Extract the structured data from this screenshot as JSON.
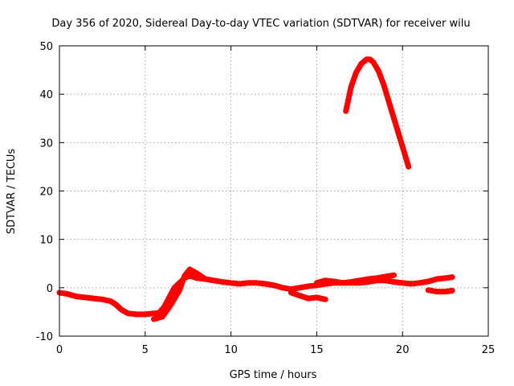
{
  "chart_data": {
    "type": "scatter",
    "title": "Day 356 of 2020, Sidereal Day-to-day VTEC variation (SDTVAR) for receiver wilu",
    "xlabel": "GPS time / hours",
    "ylabel": "SDTVAR / TECUs",
    "xlim": [
      0,
      25
    ],
    "ylim": [
      -10,
      50
    ],
    "xticks": [
      "0",
      "5",
      "10",
      "15",
      "20",
      "25"
    ],
    "yticks": [
      "-10",
      "0",
      "10",
      "20",
      "30",
      "40",
      "50"
    ],
    "grid": true,
    "legend": "none",
    "series": [
      {
        "name": "SDTVAR",
        "color": "#ff0000",
        "segments": [
          {
            "x": [
              0.0,
              0.5,
              1.0,
              1.5,
              2.0,
              2.5,
              3.0,
              3.3,
              3.6,
              4.0,
              4.5,
              5.0,
              5.5,
              5.8,
              6.1,
              6.4,
              6.7,
              7.0,
              7.3,
              7.6,
              8.0,
              8.5,
              9.0,
              9.5,
              10.0,
              10.5,
              11.0,
              11.5,
              12.0,
              12.5,
              13.0,
              13.5,
              14.0,
              14.5,
              15.0,
              15.5,
              16.0,
              16.5,
              17.0,
              17.5,
              18.0,
              18.5,
              19.0,
              19.5,
              20.0,
              20.5,
              21.0,
              21.5,
              22.0,
              22.5,
              22.9
            ],
            "y": [
              -1.0,
              -1.3,
              -1.8,
              -2.0,
              -2.2,
              -2.4,
              -2.8,
              -3.5,
              -4.5,
              -5.3,
              -5.5,
              -5.5,
              -5.3,
              -5.2,
              -4.0,
              -2.0,
              0.0,
              1.0,
              2.0,
              2.5,
              2.0,
              1.8,
              1.5,
              1.2,
              1.0,
              0.8,
              1.0,
              1.0,
              0.8,
              0.5,
              0.0,
              -0.3,
              0.0,
              0.3,
              0.5,
              0.8,
              1.0,
              1.0,
              1.0,
              1.0,
              1.2,
              1.5,
              1.5,
              1.2,
              1.0,
              0.8,
              1.0,
              1.3,
              1.8,
              2.0,
              2.2
            ]
          },
          {
            "x": [
              5.5,
              6.0,
              6.5,
              7.0,
              7.3,
              7.6,
              8.0,
              8.5
            ],
            "y": [
              -6.5,
              -6.0,
              -3.5,
              -0.5,
              2.5,
              3.8,
              3.0,
              1.8
            ]
          },
          {
            "x": [
              13.5,
              14.0,
              14.5,
              15.0,
              15.5
            ],
            "y": [
              -1.0,
              -1.6,
              -2.2,
              -2.0,
              -2.4
            ]
          },
          {
            "x": [
              15.0,
              15.5,
              16.0,
              16.5,
              17.0,
              17.5,
              18.0,
              18.5,
              19.0,
              19.5
            ],
            "y": [
              1.0,
              1.5,
              1.3,
              1.0,
              1.2,
              1.5,
              1.8,
              2.0,
              2.3,
              2.6
            ]
          },
          {
            "x": [
              21.5,
              22.0,
              22.5,
              22.9
            ],
            "y": [
              -0.5,
              -0.8,
              -0.8,
              -0.6
            ]
          },
          {
            "x": [
              16.7,
              17.0,
              17.3,
              17.6,
              17.9,
              18.1,
              18.3,
              18.6,
              18.9,
              19.2,
              19.5,
              19.8,
              20.1,
              20.35
            ],
            "y": [
              36.5,
              41.5,
              44.5,
              46.3,
              47.2,
              47.2,
              46.6,
              44.8,
              42.0,
              38.5,
              35.0,
              31.5,
              28.0,
              25.0
            ]
          }
        ]
      }
    ]
  }
}
